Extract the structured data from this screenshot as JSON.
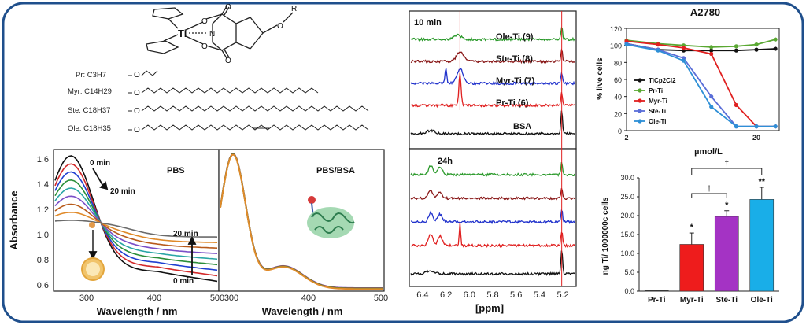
{
  "structure": {
    "ti_label": "Ti",
    "o_label": "O",
    "n_label": "N",
    "r_label": "R",
    "o_r_label": "O",
    "chains": [
      {
        "name": "Pr",
        "formula": "C3H7"
      },
      {
        "name": "Myr",
        "formula": "C14H29"
      },
      {
        "name": "Ste",
        "formula": "C18H37"
      },
      {
        "name": "Ole",
        "formula": "C18H35"
      }
    ]
  },
  "uv": {
    "ylabel": "Absorbance",
    "xlabel": "Wavelength / nm",
    "left_title": "PBS",
    "right_title": "PBS/BSA",
    "ann_0min_top": "0 min",
    "ann_20min_top": "20 min",
    "ann_20min_bottom": "20 min",
    "ann_0min_bottom": "0 min"
  },
  "nmr": {
    "panel_top_label": "10 min",
    "panel_bottom_label": "24h",
    "traces": [
      "Ole-Ti (9)",
      "Ste-Ti (8)",
      "Myr-Ti (7)",
      "Pr-Ti (6)",
      "BSA"
    ],
    "xlabel": "[ppm]"
  },
  "chart_data": [
    {
      "type": "line",
      "title": "A2780",
      "ylabel": "% live cells",
      "xlabel": "µmol/L",
      "xscale": "log",
      "xlim": [
        2,
        30
      ],
      "ylim": [
        0,
        120
      ],
      "yticks": [
        0,
        20,
        40,
        60,
        80,
        100,
        120
      ],
      "xtick_labels": [
        {
          "value": 2,
          "label": "2"
        },
        {
          "value": 20,
          "label": "20"
        }
      ],
      "x": [
        2,
        3.5,
        5.5,
        9,
        14,
        20,
        28
      ],
      "series": [
        {
          "name": "TiCp2Cl2",
          "color": "#111111",
          "values": [
            102,
            95,
            94,
            94,
            94,
            95,
            96
          ]
        },
        {
          "name": "Pr-Ti",
          "color": "#5aa832",
          "values": [
            106,
            102,
            100,
            98,
            99,
            101,
            107
          ]
        },
        {
          "name": "Myr-Ti",
          "color": "#e02020",
          "values": [
            105,
            101,
            97,
            90,
            30,
            5,
            5
          ]
        },
        {
          "name": "Ste-Ti",
          "color": "#5a6ed8",
          "values": [
            102,
            95,
            85,
            40,
            5,
            5,
            5
          ]
        },
        {
          "name": "Ole-Ti",
          "color": "#2e8fd6",
          "values": [
            101,
            94,
            82,
            28,
            5,
            5,
            5
          ]
        }
      ]
    },
    {
      "type": "bar",
      "ylabel": "ng Ti/ 1000000c cells",
      "ylim": [
        0,
        30
      ],
      "yticks": [
        "0.0",
        "5.0",
        "10.0",
        "15.0",
        "20.0",
        "25.0",
        "30.0"
      ],
      "categories": [
        "Pr-Ti",
        "Myr-Ti",
        "Ste-Ti",
        "Ole-Ti"
      ],
      "values": [
        0.2,
        12.4,
        19.8,
        24.3
      ],
      "errors": [
        0.1,
        3.0,
        1.5,
        3.2
      ],
      "colors": [
        "#3a3a3a",
        "#ee1c1c",
        "#a433c4",
        "#19aee8"
      ],
      "annotations": [
        "",
        "*",
        "*",
        "**"
      ],
      "bracket_symbols": [
        "†",
        "†"
      ]
    }
  ]
}
